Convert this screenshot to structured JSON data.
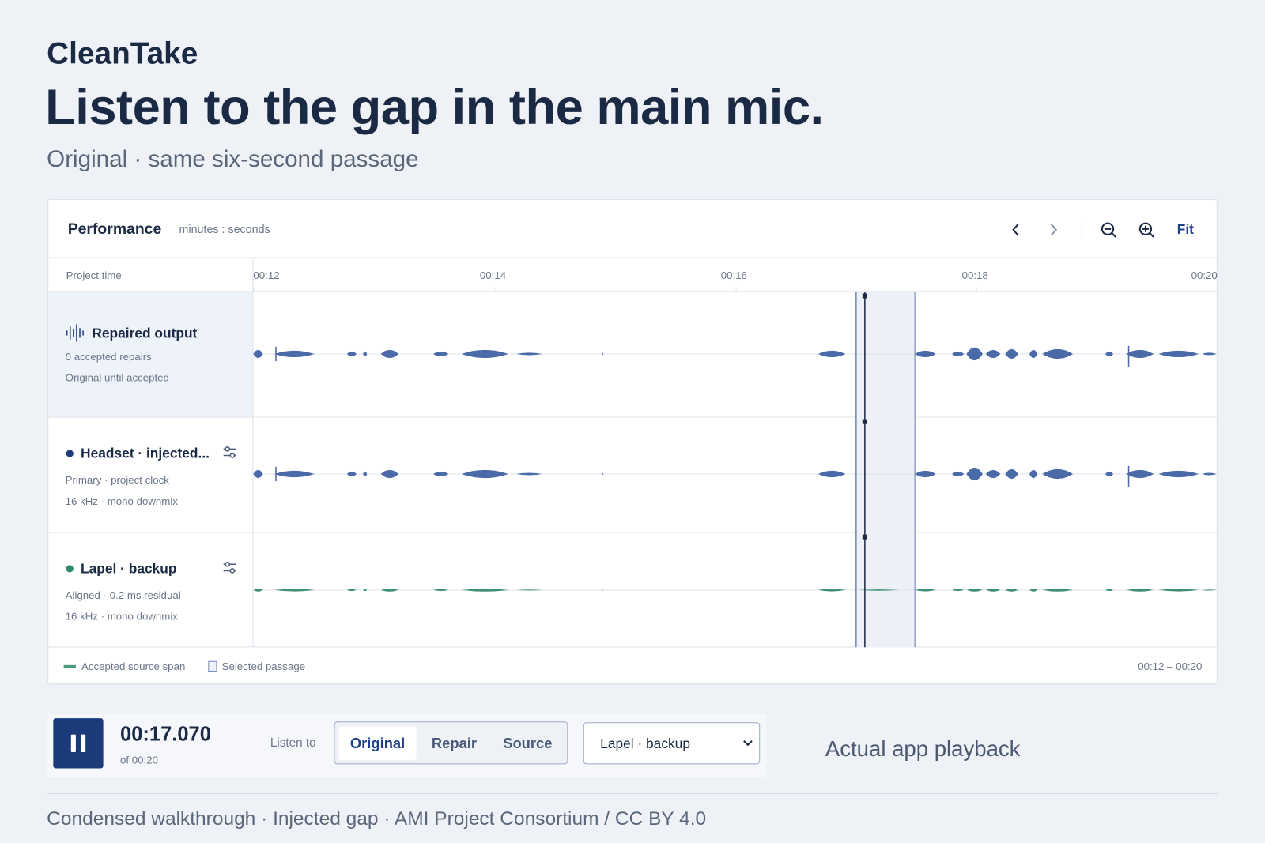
{
  "header": {
    "brand": "CleanTake",
    "title": "Listen to the gap in the main mic.",
    "subtitle": "Original · same six-second passage"
  },
  "panel": {
    "title": "Performance",
    "unit": "minutes : seconds",
    "fit": "Fit",
    "range": "00:12 – 00:20"
  },
  "ruler": {
    "label": "Project time",
    "ticks": [
      "00:12",
      "00:14",
      "00:16",
      "00:18",
      "00:20"
    ]
  },
  "tracks": [
    {
      "name": "Repaired output",
      "lines": [
        "0 accepted repairs",
        "Original until accepted"
      ]
    },
    {
      "name": "Headset · injected...",
      "lines": [
        "Primary · project clock",
        "16 kHz · mono downmix"
      ]
    },
    {
      "name": "Lapel · backup",
      "lines": [
        "Aligned · 0.2 ms residual",
        "16 kHz · mono downmix"
      ]
    }
  ],
  "legend": [
    "Accepted source span",
    "Selected passage"
  ],
  "player": {
    "time": "00:17.070",
    "total": "of 00:20",
    "listen_label": "Listen to",
    "options": [
      "Original",
      "Repair",
      "Source"
    ],
    "source": "Lapel · backup"
  },
  "note": "Actual app playback",
  "footer": "Condensed walkthrough · Injected gap · AMI Project Consortium / CC BY 4.0"
}
